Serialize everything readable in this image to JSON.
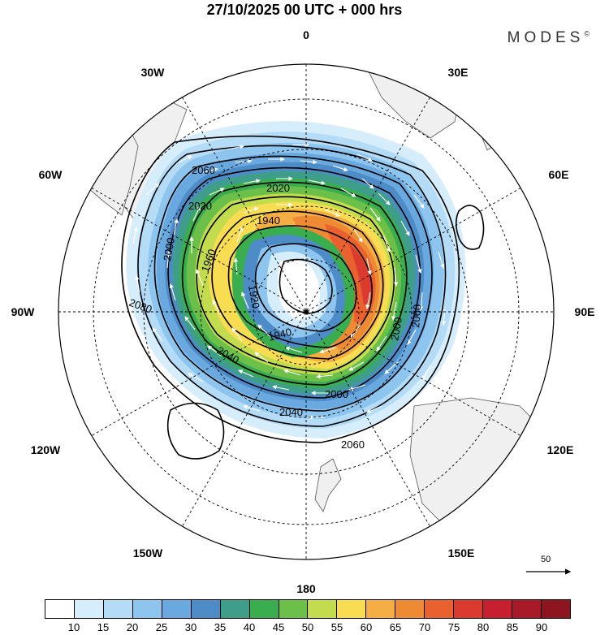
{
  "title": "27/10/2025  00 UTC  + 000 hrs",
  "brand": "MODES",
  "brand_mark": "©",
  "longitude_labels": [
    "0",
    "30E",
    "60E",
    "90E",
    "120E",
    "150E",
    "180",
    "150W",
    "120W",
    "90W",
    "60W",
    "30W"
  ],
  "contour_labels": [
    "2060",
    "2020",
    "2020",
    "1940",
    "2000",
    "1960",
    "1920",
    "2080",
    "1940",
    "2040",
    "2000",
    "2060",
    "2060",
    "2000",
    "2040",
    "2060"
  ],
  "colorbar": {
    "labels": [
      "10",
      "15",
      "20",
      "25",
      "30",
      "35",
      "40",
      "45",
      "50",
      "55",
      "60",
      "65",
      "70",
      "75",
      "80",
      "85",
      "90"
    ],
    "colors": [
      "#ffffff",
      "#d6edfb",
      "#b5dcf6",
      "#8ec5ef",
      "#6aa9df",
      "#4e8cc8",
      "#3e9e8a",
      "#3aae4f",
      "#6cc04a",
      "#c3dc4e",
      "#f8dd52",
      "#f4ae43",
      "#ef8a34",
      "#e9612e",
      "#db3a2f",
      "#c62030",
      "#a91a28",
      "#8e1420"
    ]
  },
  "reference_vector": "50",
  "colors": {
    "land": "#f0f0f0",
    "coast": "#555555",
    "contour": "#000000"
  }
}
